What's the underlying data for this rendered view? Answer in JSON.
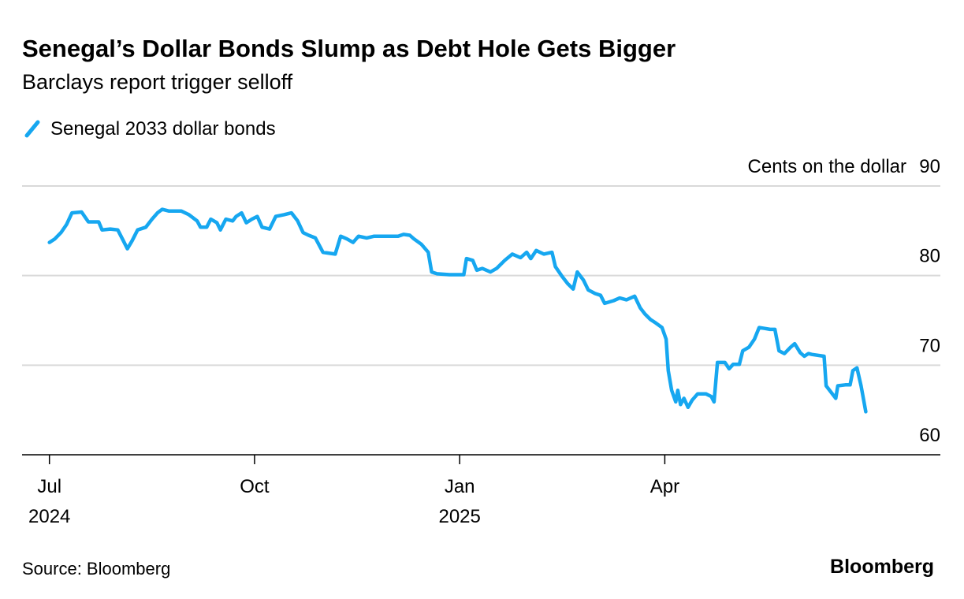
{
  "chart_data": {
    "type": "line",
    "title": "Senegal’s Dollar Bonds Slump as Debt Hole Gets Bigger",
    "subtitle": "Barclays report trigger selloff",
    "y_axis_label": "Cents on the dollar",
    "source": "Source: Bloomberg",
    "brand": "Bloomberg",
    "x": [
      0,
      0.08,
      0.17,
      0.25,
      0.33,
      0.47,
      0.57,
      0.72,
      0.77,
      0.89,
      1.0,
      1.08,
      1.14,
      1.21,
      1.29,
      1.41,
      1.5,
      1.58,
      1.65,
      1.75,
      1.93,
      2.04,
      2.16,
      2.21,
      2.3,
      2.36,
      2.45,
      2.5,
      2.58,
      2.68,
      2.73,
      2.81,
      2.88,
      2.96,
      3.04,
      3.11,
      3.22,
      3.31,
      3.43,
      3.54,
      3.63,
      3.71,
      3.79,
      3.89,
      4.0,
      4.18,
      4.26,
      4.35,
      4.44,
      4.52,
      4.64,
      4.75,
      4.87,
      5.1,
      5.18,
      5.27,
      5.33,
      5.44,
      5.54,
      5.59,
      5.67,
      5.85,
      6.0,
      6.06,
      6.1,
      6.19,
      6.25,
      6.33,
      6.45,
      6.54,
      6.66,
      6.77,
      6.89,
      6.98,
      7.04,
      7.12,
      7.23,
      7.35,
      7.4,
      7.49,
      7.58,
      7.66,
      7.72,
      7.81,
      7.88,
      7.98,
      8.06,
      8.12,
      8.25,
      8.34,
      8.44,
      8.56,
      8.64,
      8.71,
      8.79,
      8.87,
      8.96,
      9.02,
      9.05,
      9.1,
      9.16,
      9.19,
      9.23,
      9.28,
      9.34,
      9.4,
      9.48,
      9.6,
      9.68,
      9.72,
      9.77,
      9.88,
      9.94,
      10.0,
      10.09,
      10.14,
      10.23,
      10.31,
      10.38,
      10.46,
      10.54,
      10.61,
      10.67,
      10.75,
      10.84,
      10.9,
      10.98,
      11.04,
      11.1,
      11.15,
      11.33,
      11.36,
      11.44,
      11.5,
      11.53,
      11.64,
      11.71,
      11.75,
      11.81,
      11.87,
      11.94
    ],
    "series": [
      {
        "name": "Senegal 2033 dollar bonds",
        "color": "#16a7f0",
        "values": [
          83.7,
          84.1,
          84.8,
          85.7,
          87.0,
          87.1,
          86.0,
          86.0,
          85.1,
          85.2,
          85.1,
          83.9,
          83.0,
          83.9,
          85.1,
          85.4,
          86.3,
          87.0,
          87.4,
          87.2,
          87.2,
          86.8,
          86.1,
          85.4,
          85.4,
          86.3,
          85.9,
          85.1,
          86.3,
          86.1,
          86.6,
          87.0,
          85.9,
          86.3,
          86.6,
          85.4,
          85.2,
          86.6,
          86.8,
          87.0,
          86.1,
          84.8,
          84.5,
          84.2,
          82.6,
          82.4,
          84.4,
          84.1,
          83.7,
          84.4,
          84.2,
          84.4,
          84.4,
          84.4,
          84.6,
          84.5,
          84.1,
          83.5,
          82.6,
          80.4,
          80.2,
          80.1,
          80.1,
          80.1,
          81.9,
          81.7,
          80.6,
          80.8,
          80.4,
          80.8,
          81.7,
          82.4,
          82.0,
          82.6,
          81.9,
          82.8,
          82.4,
          82.6,
          81.0,
          80.0,
          79.1,
          78.5,
          80.4,
          79.5,
          78.4,
          78.0,
          77.8,
          76.9,
          77.2,
          77.5,
          77.3,
          77.7,
          76.4,
          75.7,
          75.1,
          74.7,
          74.2,
          72.9,
          69.4,
          67.2,
          65.9,
          67.2,
          65.6,
          66.3,
          65.3,
          66.1,
          66.8,
          66.8,
          66.5,
          65.9,
          70.3,
          70.3,
          69.6,
          70.1,
          70.1,
          71.6,
          72.0,
          72.9,
          74.2,
          74.1,
          74.0,
          74.0,
          71.6,
          71.3,
          72.0,
          72.4,
          71.4,
          71.0,
          71.3,
          71.2,
          71.0,
          67.7,
          66.9,
          66.3,
          67.7,
          67.8,
          67.8,
          69.4,
          69.7,
          67.7,
          64.8
        ]
      }
    ],
    "xlim": [
      -0.4,
      13.03
    ],
    "xticks": [
      {
        "value": 0,
        "label": "Jul\n2024"
      },
      {
        "value": 3,
        "label": "Oct"
      },
      {
        "value": 6,
        "label": "Jan\n2025"
      },
      {
        "value": 9,
        "label": "Apr"
      }
    ],
    "ylim": [
      60,
      90
    ],
    "yticks": [
      60,
      70,
      80,
      90
    ],
    "grid": true
  }
}
